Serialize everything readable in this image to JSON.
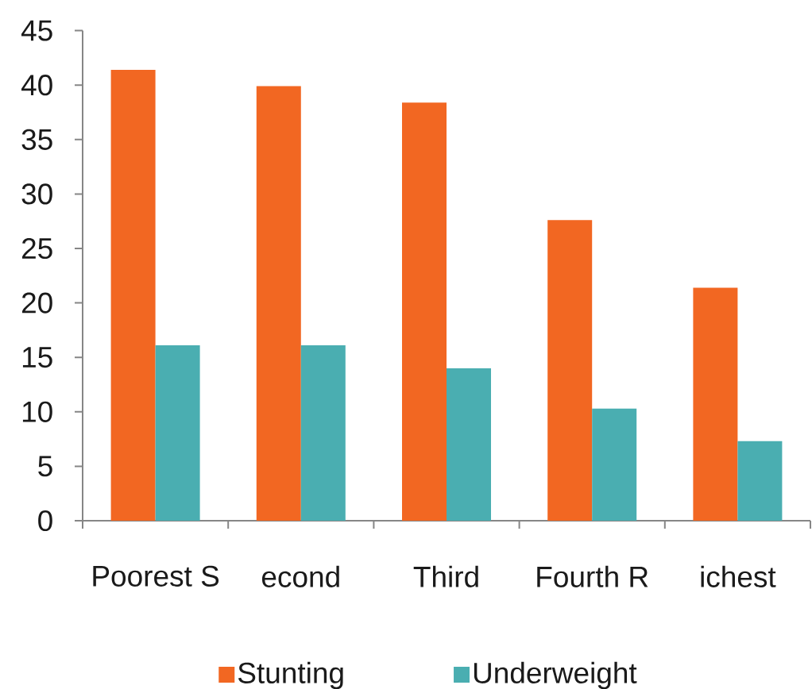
{
  "chart_data": {
    "type": "bar",
    "categories": [
      "Poorest S",
      "econd",
      "Third",
      "Fourth R",
      "ichest"
    ],
    "series": [
      {
        "name": "Stunting",
        "color": "#f26722",
        "values": [
          41.4,
          39.9,
          38.4,
          27.6,
          21.4
        ]
      },
      {
        "name": "Underweight",
        "color": "#4aaeb1",
        "values": [
          16.1,
          16.1,
          14.0,
          10.3,
          7.3
        ]
      }
    ],
    "ylim": [
      0,
      45
    ],
    "yticks": [
      0,
      5,
      10,
      15,
      20,
      25,
      30,
      35,
      40,
      45
    ],
    "legend": "bottom"
  }
}
